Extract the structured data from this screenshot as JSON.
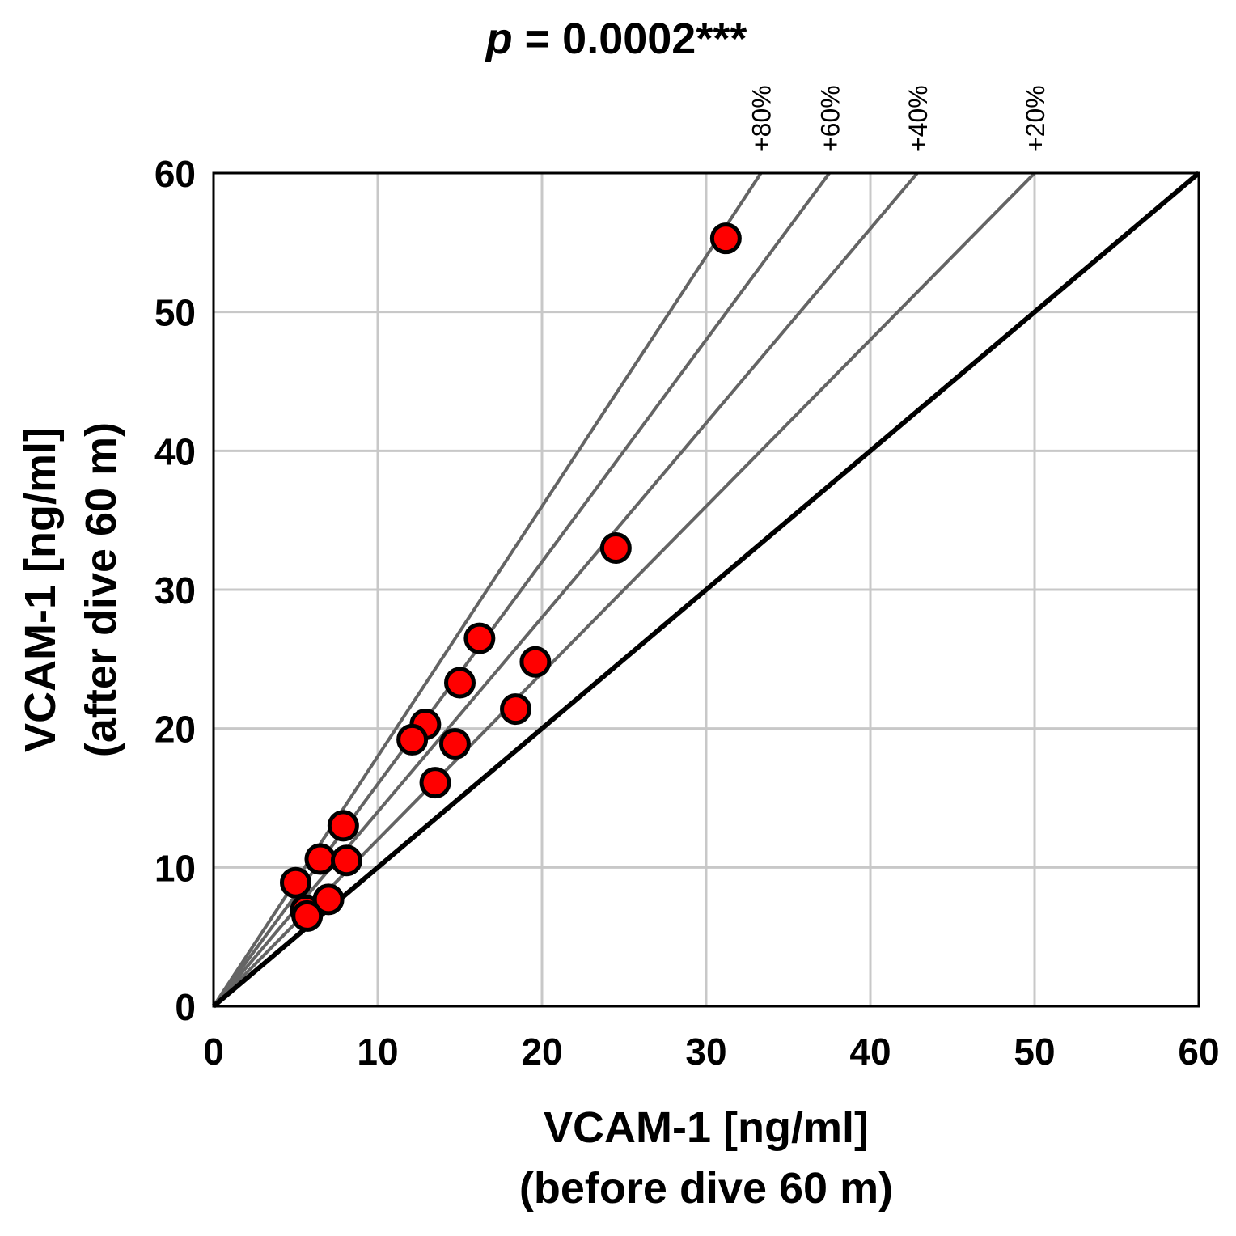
{
  "chart_data": {
    "type": "scatter",
    "title": {
      "italic": "p",
      "rest": " = 0.0002***"
    },
    "xlabel": [
      "VCAM-1 [ng/ml]",
      "(before dive 60 m)"
    ],
    "ylabel": [
      "VCAM-1 [ng/ml]",
      "(after dive 60 m)"
    ],
    "xlim": [
      0,
      60
    ],
    "ylim": [
      0,
      60
    ],
    "xticks": [
      0,
      10,
      20,
      30,
      40,
      50,
      60
    ],
    "yticks": [
      0,
      10,
      20,
      30,
      40,
      50,
      60
    ],
    "grid": true,
    "identity_line": {
      "slope": 1.0
    },
    "reference_lines": [
      {
        "label": "+80%",
        "slope": 1.8
      },
      {
        "label": "+60%",
        "slope": 1.6
      },
      {
        "label": "+40%",
        "slope": 1.4
      },
      {
        "label": "+20%",
        "slope": 1.2
      }
    ],
    "marker_color": "#ff0000",
    "points": [
      {
        "x": 31.2,
        "y": 55.3
      },
      {
        "x": 24.5,
        "y": 33.0
      },
      {
        "x": 16.2,
        "y": 26.5
      },
      {
        "x": 19.6,
        "y": 24.8
      },
      {
        "x": 15.0,
        "y": 23.3
      },
      {
        "x": 18.4,
        "y": 21.4
      },
      {
        "x": 12.9,
        "y": 20.3
      },
      {
        "x": 12.1,
        "y": 19.2
      },
      {
        "x": 14.7,
        "y": 18.9
      },
      {
        "x": 13.5,
        "y": 16.1
      },
      {
        "x": 7.9,
        "y": 13.0
      },
      {
        "x": 6.5,
        "y": 10.6
      },
      {
        "x": 8.1,
        "y": 10.5
      },
      {
        "x": 5.0,
        "y": 8.9
      },
      {
        "x": 5.6,
        "y": 6.9
      },
      {
        "x": 7.0,
        "y": 7.7
      },
      {
        "x": 5.7,
        "y": 6.5
      }
    ]
  }
}
